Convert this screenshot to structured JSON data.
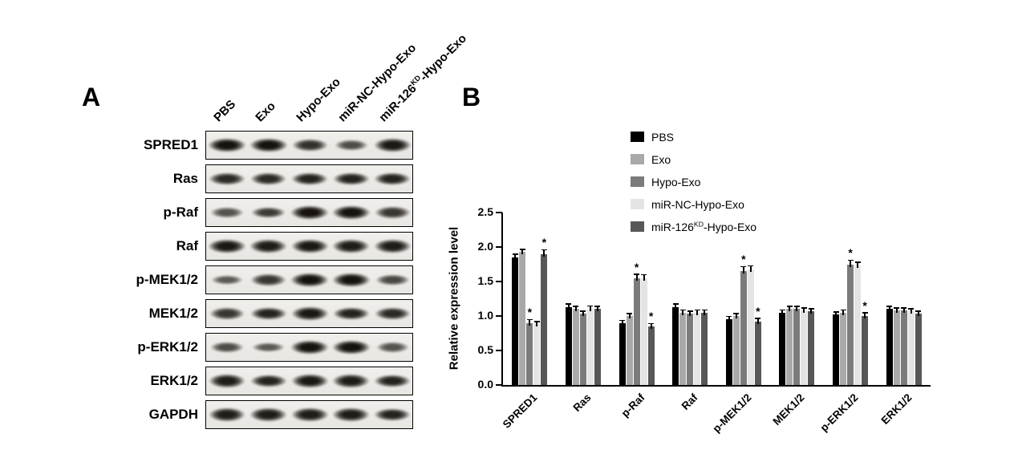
{
  "panels": {
    "a_label": "A",
    "b_label": "B"
  },
  "blot": {
    "lane_labels": [
      "PBS",
      "Exo",
      "Hypo-Exo",
      "miR-NC-Hypo-Exo",
      "miR-126^KD^-Hypo-Exo"
    ],
    "rows": [
      {
        "label": "SPRED1",
        "bands": [
          1.0,
          1.0,
          0.75,
          0.5,
          0.95
        ]
      },
      {
        "label": "Ras",
        "bands": [
          0.8,
          0.8,
          0.85,
          0.85,
          0.85
        ]
      },
      {
        "label": "p-Raf",
        "bands": [
          0.45,
          0.65,
          1.0,
          1.0,
          0.7
        ]
      },
      {
        "label": "Raf",
        "bands": [
          0.95,
          0.9,
          0.95,
          0.9,
          0.9
        ]
      },
      {
        "label": "p-MEK1/2",
        "bands": [
          0.4,
          0.7,
          1.0,
          1.0,
          0.55
        ]
      },
      {
        "label": "MEK1/2",
        "bands": [
          0.7,
          0.85,
          0.95,
          0.85,
          0.8
        ]
      },
      {
        "label": "p-ERK1/2",
        "bands": [
          0.5,
          0.4,
          1.0,
          1.0,
          0.45
        ]
      },
      {
        "label": "ERK1/2",
        "bands": [
          0.9,
          0.85,
          0.95,
          0.9,
          0.85
        ]
      },
      {
        "label": "GAPDH",
        "bands": [
          0.9,
          0.9,
          0.9,
          0.9,
          0.85
        ]
      }
    ]
  },
  "chart_data": {
    "type": "bar",
    "title": "",
    "ylabel": "Relative expression level",
    "ylim": [
      0,
      2.5
    ],
    "ytick_labels": [
      "0.0",
      "0.5",
      "1.0",
      "1.5",
      "2.0",
      "2.5"
    ],
    "grid": false,
    "legend_position": "top-right",
    "categories": [
      "SPRED1",
      "Ras",
      "p-Raf",
      "Raf",
      "p-MEK1/2",
      "MEK1/2",
      "p-ERK1/2",
      "ERK1/2"
    ],
    "series": [
      {
        "name": "PBS",
        "color": "#000000",
        "values": [
          1.85,
          1.13,
          0.9,
          1.13,
          0.95,
          1.05,
          1.02,
          1.1
        ],
        "errors": [
          0.05,
          0.05,
          0.04,
          0.05,
          0.05,
          0.04,
          0.04,
          0.04
        ],
        "sig": [
          "",
          "",
          "",
          "",
          "",
          "",
          "",
          ""
        ]
      },
      {
        "name": "Exo",
        "color": "#a9a9a9",
        "values": [
          1.93,
          1.1,
          1.0,
          1.05,
          1.0,
          1.1,
          1.05,
          1.08
        ],
        "errors": [
          0.04,
          0.04,
          0.04,
          0.04,
          0.04,
          0.04,
          0.04,
          0.04
        ],
        "sig": [
          "",
          "",
          "",
          "",
          "",
          "",
          "",
          ""
        ]
      },
      {
        "name": "Hypo-Exo",
        "color": "#7b7b7b",
        "values": [
          0.9,
          1.03,
          1.55,
          1.03,
          1.65,
          1.1,
          1.75,
          1.08
        ],
        "errors": [
          0.05,
          0.04,
          0.06,
          0.04,
          0.07,
          0.04,
          0.06,
          0.04
        ],
        "sig": [
          "*",
          "",
          "*",
          "",
          "*",
          "",
          "*",
          ""
        ]
      },
      {
        "name": "miR-NC-Hypo-Exo",
        "color": "#e4e4e4",
        "values": [
          0.88,
          1.1,
          1.55,
          1.05,
          1.67,
          1.08,
          1.73,
          1.07
        ],
        "errors": [
          0.04,
          0.05,
          0.05,
          0.04,
          0.06,
          0.04,
          0.05,
          0.04
        ],
        "sig": [
          "",
          "",
          "",
          "",
          "",
          "",
          "",
          ""
        ]
      },
      {
        "name": "miR-126^KD^-Hypo-Exo",
        "color": "#575757",
        "values": [
          1.9,
          1.1,
          0.85,
          1.05,
          0.92,
          1.07,
          1.0,
          1.03
        ],
        "errors": [
          0.06,
          0.04,
          0.04,
          0.04,
          0.05,
          0.04,
          0.05,
          0.04
        ],
        "sig": [
          "*",
          "",
          "*",
          "",
          "*",
          "",
          "*",
          ""
        ]
      }
    ]
  }
}
